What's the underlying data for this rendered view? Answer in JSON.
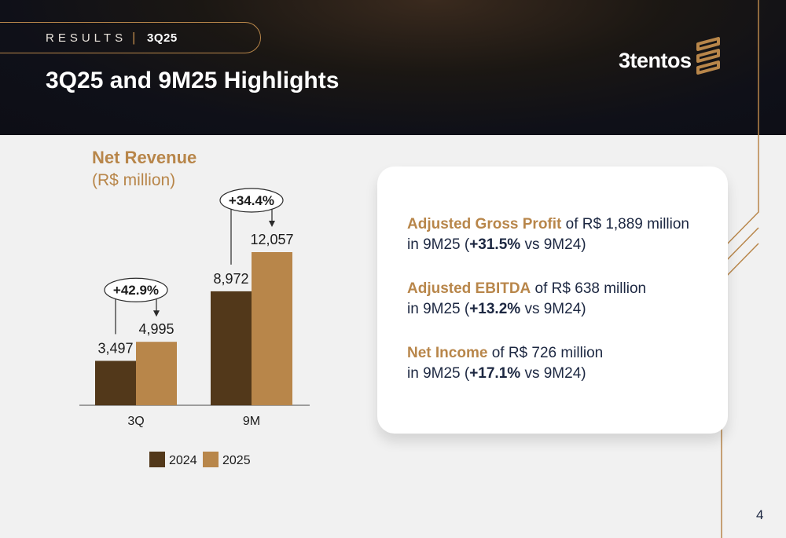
{
  "header": {
    "section": "RESULTS",
    "separator": "|",
    "quarter": "3Q25",
    "title": "3Q25 and 9M25 Highlights",
    "logo": "3tentos"
  },
  "colors": {
    "accent": "#b8864a",
    "series_2024": "#52381a",
    "series_2025": "#b8864a",
    "text_dark": "#1c2741"
  },
  "chart_data": {
    "type": "bar",
    "title": "Net Revenue",
    "subtitle": "(R$ million)",
    "categories": [
      "3Q",
      "9M"
    ],
    "series": [
      {
        "name": "2024",
        "values": [
          3497,
          8972
        ],
        "labels": [
          "3,497",
          "8,972"
        ]
      },
      {
        "name": "2025",
        "values": [
          4995,
          12057
        ],
        "labels": [
          "4,995",
          "12,057"
        ]
      }
    ],
    "growth": [
      "+42.9%",
      "+34.4%"
    ],
    "ylim": [
      0,
      12057
    ],
    "legend": "bottom"
  },
  "highlights": [
    {
      "metric": "Adjusted Gross Profit",
      "text1": " of R$ 1,889 million",
      "text2a": "in 9M25 (",
      "change": "+31.5%",
      "text2b": " vs 9M24)"
    },
    {
      "metric": "Adjusted EBITDA",
      "text1": " of R$ 638 million",
      "text2a": "in 9M25 (",
      "change": "+13.2%",
      "text2b": " vs 9M24)"
    },
    {
      "metric": "Net Income",
      "text1": " of R$ 726 million",
      "text2a": "in 9M25 (",
      "change": "+17.1%",
      "text2b": " vs 9M24)"
    }
  ],
  "page_number": "4"
}
